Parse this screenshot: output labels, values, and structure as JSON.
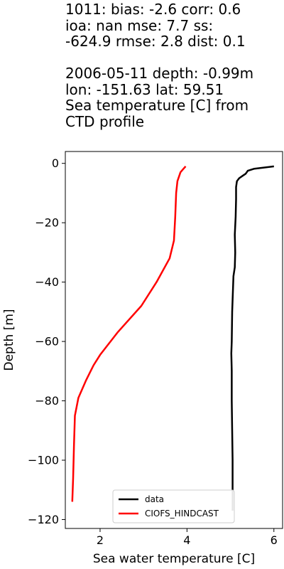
{
  "title_lines": [
    "1011: bias: -2.6  corr: 0.6",
    "ioa: nan  mse: 7.7  ss:",
    "-624.9  rmse: 2.8  dist: 0.1",
    "",
    "2006-05-11 depth: -0.99m",
    "lon: -151.63 lat: 59.51",
    "Sea temperature [C] from",
    "CTD profile"
  ],
  "chart_data": {
    "type": "line",
    "xlabel": "Sea water temperature [C]",
    "ylabel": "Depth [m]",
    "xlim": [
      1.2,
      6.2
    ],
    "ylim": [
      -123,
      4
    ],
    "xticks": [
      2,
      4,
      6
    ],
    "yticks": [
      0,
      -20,
      -40,
      -60,
      -80,
      -100,
      -120
    ],
    "grid": false,
    "legend_position": "lower-center",
    "series": [
      {
        "name": "data",
        "color": "#000000",
        "points": [
          [
            6.0,
            -1
          ],
          [
            5.55,
            -1.8
          ],
          [
            5.4,
            -2.5
          ],
          [
            5.35,
            -3.5
          ],
          [
            5.28,
            -4.2
          ],
          [
            5.2,
            -5
          ],
          [
            5.15,
            -6
          ],
          [
            5.13,
            -8
          ],
          [
            5.13,
            -12
          ],
          [
            5.12,
            -18
          ],
          [
            5.1,
            -24
          ],
          [
            5.11,
            -30
          ],
          [
            5.1,
            -35
          ],
          [
            5.07,
            -38
          ],
          [
            5.06,
            -42
          ],
          [
            5.04,
            -50
          ],
          [
            5.03,
            -60
          ],
          [
            5.02,
            -64
          ],
          [
            5.03,
            -70
          ],
          [
            5.03,
            -80
          ],
          [
            5.04,
            -90
          ],
          [
            5.05,
            -100
          ],
          [
            5.05,
            -110
          ],
          [
            5.05,
            -117
          ]
        ]
      },
      {
        "name": "CIOFS_HINDCAST",
        "color": "#ff0000",
        "points": [
          [
            3.97,
            -1
          ],
          [
            3.92,
            -1.8
          ],
          [
            3.85,
            -3
          ],
          [
            3.78,
            -6
          ],
          [
            3.75,
            -10
          ],
          [
            3.73,
            -18
          ],
          [
            3.7,
            -26
          ],
          [
            3.6,
            -32
          ],
          [
            3.3,
            -40
          ],
          [
            2.95,
            -48
          ],
          [
            2.4,
            -57
          ],
          [
            2.0,
            -64.5
          ],
          [
            1.85,
            -68
          ],
          [
            1.68,
            -73
          ],
          [
            1.5,
            -79
          ],
          [
            1.42,
            -85
          ],
          [
            1.4,
            -95
          ],
          [
            1.38,
            -106
          ],
          [
            1.36,
            -114
          ]
        ]
      }
    ]
  }
}
